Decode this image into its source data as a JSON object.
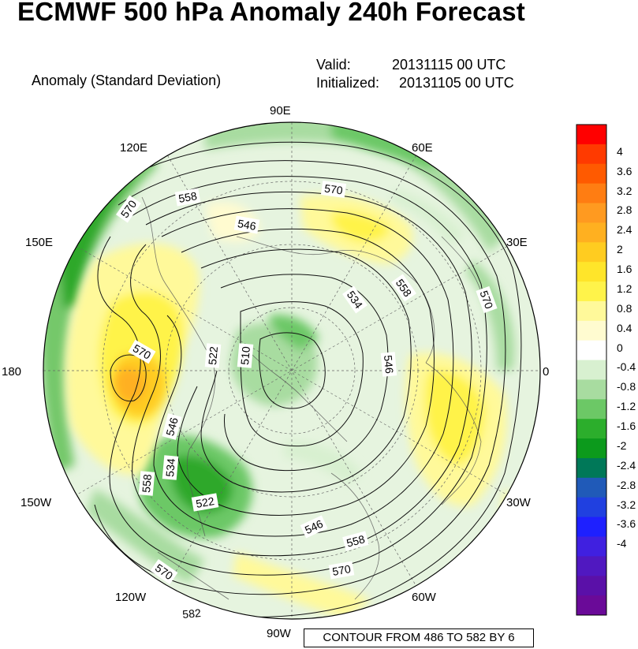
{
  "title": "ECMWF 500 hPa Anomaly 240h Forecast",
  "subtitle": "Anomaly (Standard Deviation)",
  "valid_label": "Valid:",
  "valid_value": "20131115 00 UTC",
  "init_label": "Initialized:",
  "init_value": "20131105 00 UTC",
  "footer": "CONTOUR FROM 486 TO 582 BY 6",
  "lon_labels": {
    "e90": "90E",
    "e60": "60E",
    "e30": "30E",
    "zero": "0",
    "w30": "30W",
    "w60": "60W",
    "w90": "90W",
    "w120": "120W",
    "w150": "150W",
    "d180": "180",
    "e150": "150E",
    "e120": "120E"
  },
  "contour_labels": [
    "570",
    "558",
    "546",
    "570",
    "534",
    "558",
    "570",
    "570",
    "522",
    "510",
    "546",
    "546",
    "534",
    "558",
    "522",
    "546",
    "558",
    "570",
    "570",
    "582"
  ],
  "colorbar": {
    "labels": [
      "4",
      "3.6",
      "3.2",
      "2.8",
      "2.4",
      "2",
      "1.6",
      "1.2",
      "0.8",
      "0.4",
      "0",
      "-0.4",
      "-0.8",
      "-1.2",
      "-1.6",
      "-2",
      "-2.4",
      "-2.8",
      "-3.2",
      "-3.6",
      "-4"
    ],
    "colors": [
      "#ff0000",
      "#ff3a00",
      "#ff5a00",
      "#ff7d12",
      "#ff9a20",
      "#ffb020",
      "#ffcc20",
      "#ffe52a",
      "#fff34a",
      "#fff99a",
      "#fffbd0",
      "#ffffff",
      "#d8f0d0",
      "#a8dca0",
      "#6cc866",
      "#2cae2c",
      "#0c9a1c",
      "#007858",
      "#205ab8",
      "#2040e0",
      "#1e20ff",
      "#4020e0",
      "#5018c0",
      "#5a10a8",
      "#6a0a98"
    ]
  },
  "chart_data": {
    "type": "contour-map",
    "projection": "polar stereographic, north pole centered",
    "field": "500 hPa geopotential height (dam) with standardized anomaly shading",
    "contour_range": [
      486,
      582
    ],
    "contour_interval": 6,
    "anomaly_range": [
      -4,
      4
    ],
    "anomaly_step": 0.4
  }
}
